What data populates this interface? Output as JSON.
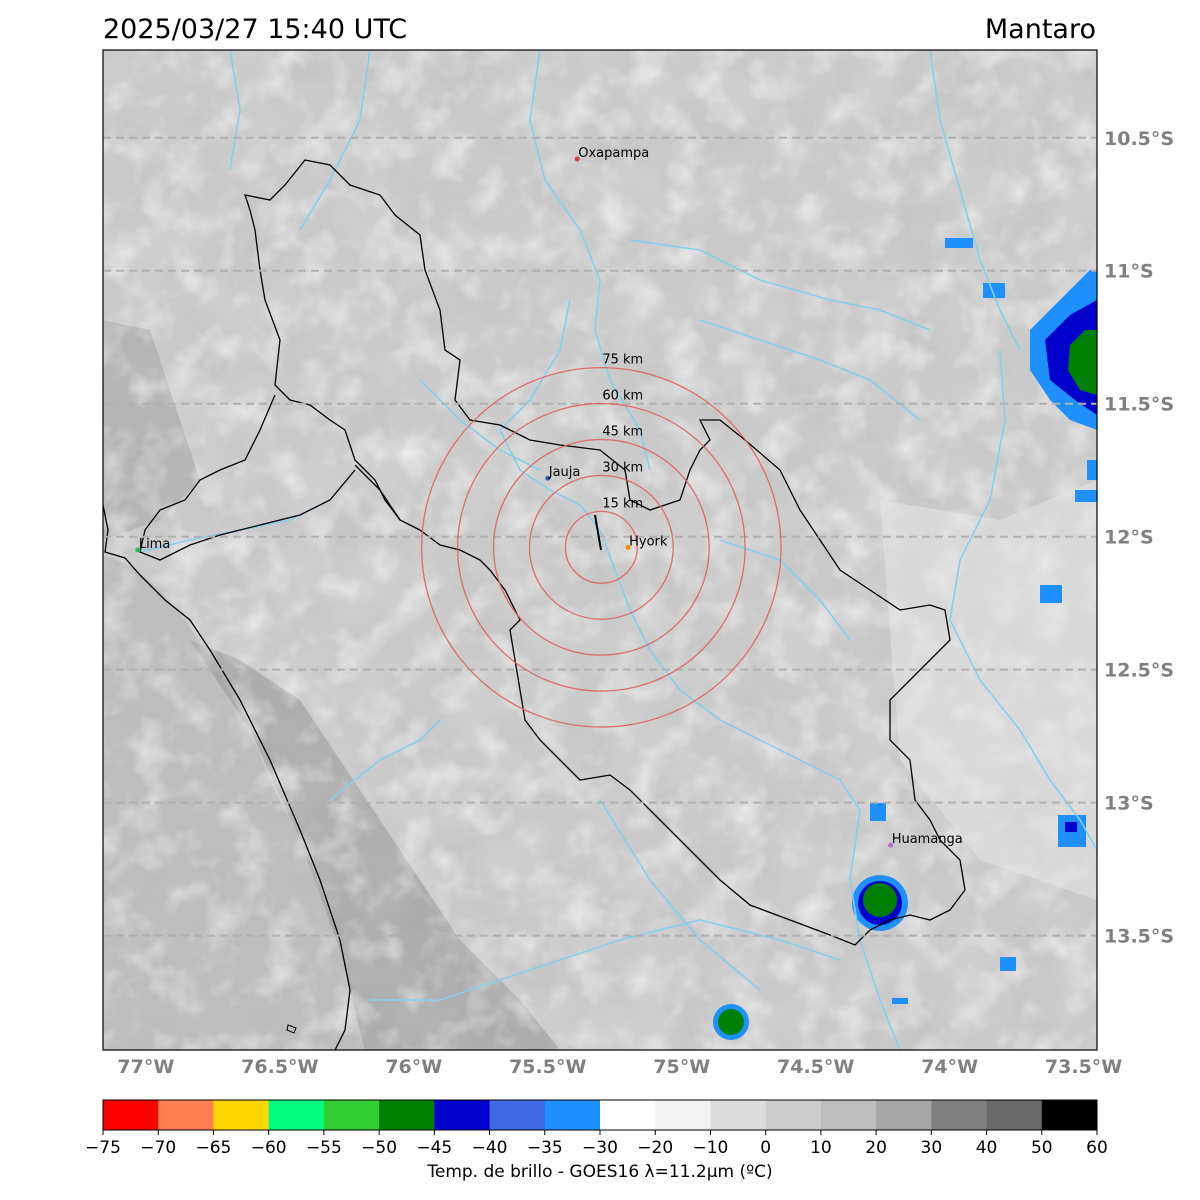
{
  "header": {
    "datetime": "2025/03/27 15:40 UTC",
    "basin_name": "Mantaro"
  },
  "map": {
    "lon_range": [
      -77.16,
      -73.45
    ],
    "lat_range": [
      -10.17,
      -13.93
    ],
    "lat_gridlines": [
      -10.5,
      -11.0,
      -11.5,
      -12.0,
      -12.5,
      -13.0,
      -13.5
    ],
    "lat_labels": [
      "10.5°S",
      "11°S",
      "11.5°S",
      "12°S",
      "12.5°S",
      "13°S",
      "13.5°S"
    ],
    "lon_ticks": [
      -77.0,
      -76.5,
      -76.0,
      -75.5,
      -75.0,
      -74.5,
      -74.0,
      -73.5
    ],
    "lon_labels": [
      "77°W",
      "76.5°W",
      "76°W",
      "75.5°W",
      "75°W",
      "74.5°W",
      "74°W",
      "73.5°W"
    ],
    "gridline_color": "#b0b0b0",
    "river_color": "#87ceeb",
    "basin_outline_color": "#000000",
    "ring_color": "#e06060",
    "cities": [
      {
        "name": "Oxapampa",
        "lon": -75.39,
        "lat": -10.58,
        "color": "#d04040"
      },
      {
        "name": "Jauja",
        "lon": -75.5,
        "lat": -11.78,
        "color": "#3060c0"
      },
      {
        "name": "Hyork",
        "lon": -75.2,
        "lat": -12.04,
        "color": "#ff8c00"
      },
      {
        "name": "Lima",
        "lon": -77.03,
        "lat": -12.05,
        "color": "#20c060"
      },
      {
        "name": "Huamanga",
        "lon": -74.22,
        "lat": -13.16,
        "color": "#b070d0"
      }
    ],
    "rings": {
      "center_lon": -75.3,
      "center_lat": -12.04,
      "radii_km": [
        15,
        30,
        45,
        60,
        75
      ],
      "labels": [
        "15 km",
        "30 km",
        "45 km",
        "60 km",
        "75 km"
      ]
    }
  },
  "colorbar": {
    "title": "Temp. de brillo - GOES16 λ=11.2μm (ºC)",
    "ticks": [
      "−75",
      "−70",
      "−65",
      "−60",
      "−55",
      "−50",
      "−45",
      "−40",
      "−35",
      "−30",
      "−20",
      "−10",
      "0",
      "10",
      "20",
      "30",
      "40",
      "50",
      "60"
    ],
    "colors": [
      "#ff0000",
      "#ff7f50",
      "#ffd700",
      "#00ff7f",
      "#32cd32",
      "#008000",
      "#0000cd",
      "#4169e1",
      "#1e90ff",
      "#ffffff",
      "#f2f2f2",
      "#dcdcdc",
      "#cccccc",
      "#bdbdbd",
      "#a6a6a6",
      "#808080",
      "#696969",
      "#000000"
    ]
  }
}
